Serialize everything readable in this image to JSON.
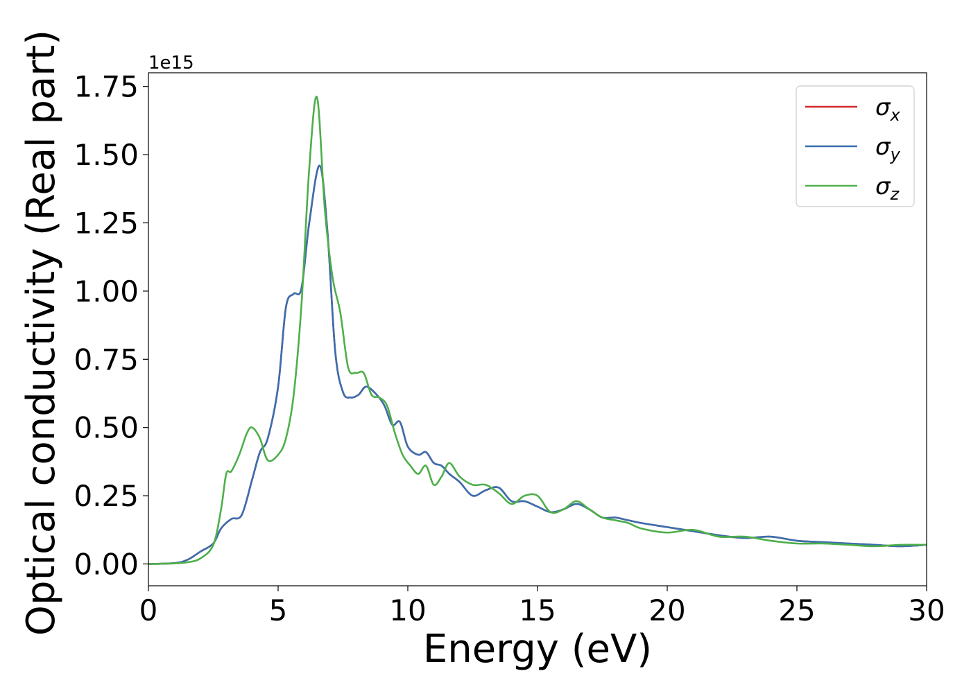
{
  "chart_data": {
    "type": "line",
    "title": "",
    "xlabel": "Energy (eV)",
    "ylabel": "Optical conductivity (Real part)",
    "y_offset_label": "1e15",
    "y_scale": 1000000000000000.0,
    "xlim": [
      0,
      30
    ],
    "ylim": [
      -0.08,
      1.8
    ],
    "xticks": [
      0,
      5,
      10,
      15,
      20,
      25,
      30
    ],
    "xtick_labels": [
      "0",
      "5",
      "10",
      "15",
      "20",
      "25",
      "30"
    ],
    "yticks": [
      0.0,
      0.25,
      0.5,
      0.75,
      1.0,
      1.25,
      1.5,
      1.75
    ],
    "ytick_labels": [
      "0.00",
      "0.25",
      "0.50",
      "0.75",
      "1.00",
      "1.25",
      "1.50",
      "1.75"
    ],
    "grid": false,
    "legend_position": "top-right",
    "series": [
      {
        "name": "σx",
        "legend_symbol": "σ",
        "legend_subscript": "x",
        "color": "#d62728",
        "x": [
          0,
          1,
          1.5,
          2,
          2.5,
          2.8,
          3.2,
          3.6,
          4,
          4.3,
          4.6,
          5,
          5.3,
          5.6,
          5.9,
          6.2,
          6.6,
          6.9,
          7.2,
          7.5,
          7.8,
          8.1,
          8.4,
          8.8,
          9.1,
          9.4,
          9.7,
          10,
          10.4,
          10.7,
          11,
          11.3,
          11.6,
          12,
          12.5,
          13,
          13.5,
          14,
          14.5,
          15,
          15.5,
          16,
          16.5,
          17,
          17.5,
          18,
          18.5,
          19,
          20,
          21,
          22,
          23,
          24,
          25,
          26,
          27,
          28,
          29,
          30
        ],
        "values": [
          0.0,
          0.003,
          0.015,
          0.045,
          0.075,
          0.13,
          0.165,
          0.18,
          0.31,
          0.41,
          0.46,
          0.65,
          0.94,
          0.99,
          1.01,
          1.25,
          1.46,
          1.22,
          0.78,
          0.63,
          0.61,
          0.62,
          0.65,
          0.62,
          0.58,
          0.51,
          0.52,
          0.43,
          0.4,
          0.41,
          0.37,
          0.36,
          0.33,
          0.3,
          0.25,
          0.27,
          0.28,
          0.23,
          0.23,
          0.21,
          0.19,
          0.2,
          0.22,
          0.2,
          0.17,
          0.17,
          0.16,
          0.15,
          0.135,
          0.12,
          0.105,
          0.095,
          0.1,
          0.085,
          0.08,
          0.075,
          0.07,
          0.065,
          0.07
        ]
      },
      {
        "name": "σy",
        "legend_symbol": "σ",
        "legend_subscript": "y",
        "color": "#3a6fb0",
        "x": [
          0,
          1,
          1.5,
          2,
          2.5,
          2.8,
          3.2,
          3.6,
          4,
          4.3,
          4.6,
          5,
          5.3,
          5.6,
          5.9,
          6.2,
          6.6,
          6.9,
          7.2,
          7.5,
          7.8,
          8.1,
          8.4,
          8.8,
          9.1,
          9.4,
          9.7,
          10,
          10.4,
          10.7,
          11,
          11.3,
          11.6,
          12,
          12.5,
          13,
          13.5,
          14,
          14.5,
          15,
          15.5,
          16,
          16.5,
          17,
          17.5,
          18,
          18.5,
          19,
          20,
          21,
          22,
          23,
          24,
          25,
          26,
          27,
          28,
          29,
          30
        ],
        "values": [
          0.0,
          0.003,
          0.015,
          0.045,
          0.075,
          0.13,
          0.165,
          0.18,
          0.31,
          0.41,
          0.46,
          0.65,
          0.94,
          0.99,
          1.01,
          1.25,
          1.46,
          1.22,
          0.78,
          0.63,
          0.61,
          0.62,
          0.65,
          0.62,
          0.58,
          0.51,
          0.52,
          0.43,
          0.4,
          0.41,
          0.37,
          0.36,
          0.33,
          0.3,
          0.25,
          0.27,
          0.28,
          0.23,
          0.23,
          0.21,
          0.19,
          0.2,
          0.22,
          0.2,
          0.17,
          0.17,
          0.16,
          0.15,
          0.135,
          0.12,
          0.105,
          0.095,
          0.1,
          0.085,
          0.08,
          0.075,
          0.07,
          0.065,
          0.07
        ]
      },
      {
        "name": "σz",
        "legend_symbol": "σ",
        "legend_subscript": "z",
        "color": "#4daf4a",
        "x": [
          0,
          1,
          1.5,
          2,
          2.5,
          2.8,
          3.0,
          3.2,
          3.5,
          3.8,
          4.0,
          4.3,
          4.6,
          5.0,
          5.3,
          5.6,
          5.9,
          6.2,
          6.5,
          6.8,
          7.1,
          7.4,
          7.7,
          8.0,
          8.3,
          8.6,
          8.9,
          9.2,
          9.5,
          9.8,
          10.1,
          10.4,
          10.7,
          11.0,
          11.3,
          11.6,
          12.0,
          12.5,
          13.0,
          13.5,
          14.0,
          14.5,
          15.0,
          15.5,
          16.0,
          16.5,
          17.0,
          17.5,
          18.0,
          18.5,
          19.0,
          20.0,
          21.0,
          22.0,
          23.0,
          24.0,
          25.0,
          26.0,
          27.0,
          28.0,
          29.0,
          30.0
        ],
        "values": [
          0.0,
          0.002,
          0.006,
          0.02,
          0.07,
          0.2,
          0.33,
          0.34,
          0.4,
          0.48,
          0.5,
          0.46,
          0.38,
          0.4,
          0.46,
          0.62,
          0.95,
          1.45,
          1.71,
          1.3,
          1.05,
          0.92,
          0.72,
          0.7,
          0.7,
          0.62,
          0.61,
          0.58,
          0.48,
          0.4,
          0.36,
          0.33,
          0.36,
          0.29,
          0.32,
          0.37,
          0.32,
          0.29,
          0.29,
          0.26,
          0.22,
          0.25,
          0.25,
          0.19,
          0.2,
          0.23,
          0.2,
          0.17,
          0.16,
          0.15,
          0.13,
          0.115,
          0.125,
          0.1,
          0.1,
          0.085,
          0.075,
          0.075,
          0.07,
          0.065,
          0.07,
          0.07
        ]
      }
    ]
  }
}
